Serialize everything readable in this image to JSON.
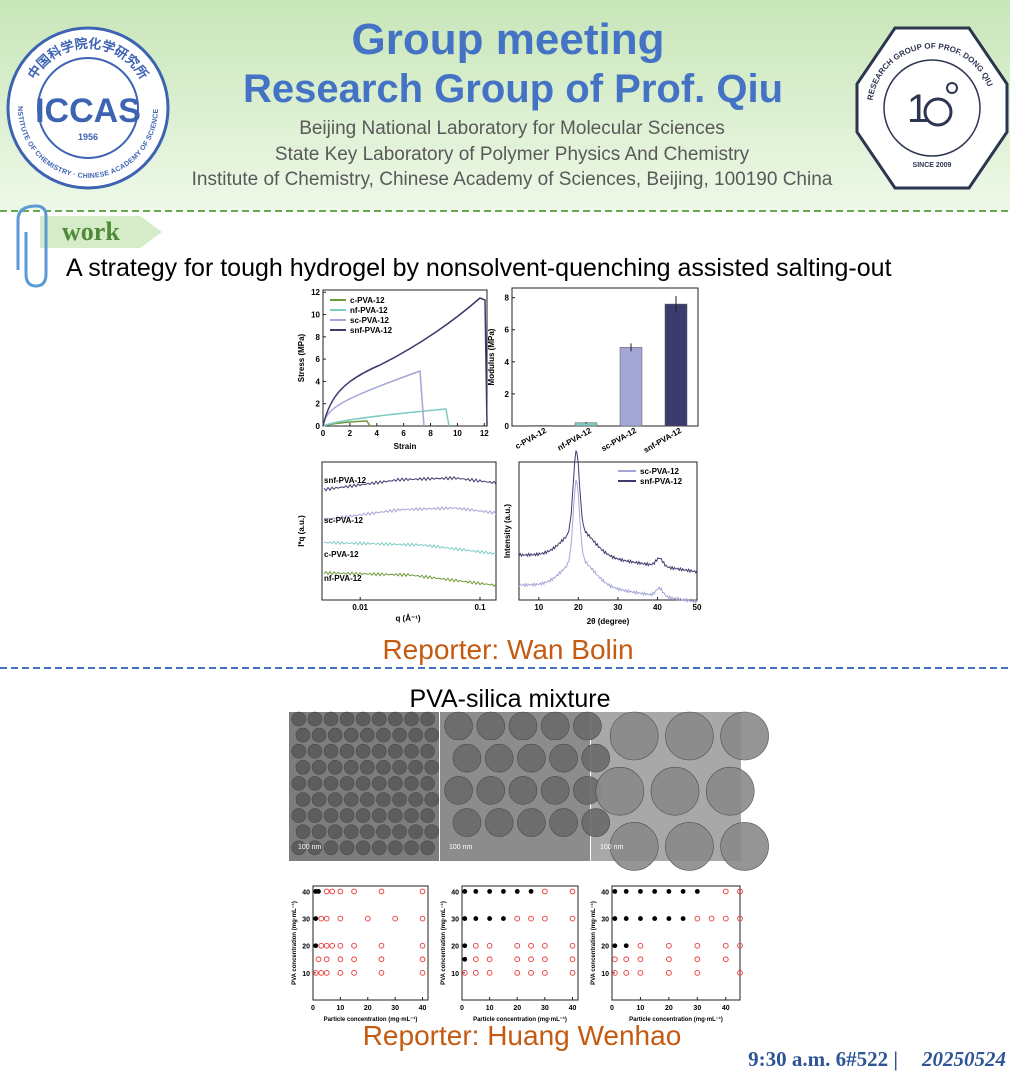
{
  "header": {
    "title": "Group meeting",
    "subtitle": "Research Group of Prof. Qiu",
    "affiliations": [
      "Beijing National Laboratory for Molecular Sciences",
      "State Key Laboratory of Polymer Physics And Chemistry",
      "Institute of Chemistry, Chinese Academy of Sciences, Beijing, 100190 China"
    ],
    "logo_left": {
      "top": "中国科学院化学研究所",
      "abbr": "ICCAS",
      "year": "1956",
      "bottom": "INSTITUTE OF CHEMISTRY · CHINESE ACADEMY OF SCIENCES"
    },
    "logo_right": {
      "ring": "RESEARCH GROUP OF PROF. DONG QIU",
      "since": "SINCE 2009"
    }
  },
  "section_tag": "work",
  "talks": [
    {
      "title": "A strategy for tough  hydrogel by nonsolvent-quenching assisted salting-out",
      "stress_strain": {
        "ylabel": "Stress (MPa)",
        "xlabel": "Strain",
        "ylim": [
          0,
          12.2
        ],
        "yticks": [
          0,
          2,
          4,
          6,
          8,
          10,
          12
        ],
        "xlim": [
          0,
          12.2
        ],
        "xticks": [
          0,
          2,
          4,
          6,
          8,
          10,
          12
        ],
        "series": [
          {
            "name": "c-PVA-12",
            "color": "#6d9c3c"
          },
          {
            "name": "nf-PVA-12",
            "color": "#7fcbc2"
          },
          {
            "name": "sc-PVA-12",
            "color": "#a4a6d6"
          },
          {
            "name": "snf-PVA-12",
            "color": "#3c3b6e"
          }
        ]
      },
      "modulus": {
        "ylabel": "Modulus (MPa)",
        "ylim": [
          0,
          8.6
        ],
        "yticks": [
          0,
          2,
          4,
          6,
          8
        ],
        "categories": [
          "c-PVA-12",
          "nf-PVA-12",
          "sc-PVA-12",
          "snf-PVA-12"
        ],
        "values": [
          0.03,
          0.2,
          4.9,
          7.6
        ],
        "errors": [
          0.02,
          0.05,
          0.25,
          0.5
        ],
        "colors": [
          "#6d9c3c",
          "#7fcbc2",
          "#a4a6d6",
          "#3c3b6e"
        ]
      },
      "saxs": {
        "ylabel": "I*q (a.u.)",
        "xlabel": "q (Å⁻¹)",
        "log_x": true,
        "xlim": [
          0.0048,
          0.136
        ],
        "xticks": [
          0.01,
          0.1
        ],
        "labels": [
          "snf-PVA-12",
          "sc-PVA-12",
          "c-PVA-12",
          "nf-PVA-12"
        ]
      },
      "waxs": {
        "ylabel": "Intensity (a.u.)",
        "xlabel": "2θ (degree)",
        "xlim": [
          5,
          50
        ],
        "xticks": [
          10,
          20,
          30,
          40,
          50
        ],
        "series": [
          {
            "name": "sc-PVA-12",
            "color": "#a4a6d6"
          },
          {
            "name": "snf-PVA-12",
            "color": "#3c3b6e"
          }
        ]
      },
      "reporter": "Reporter: Wan Bolin"
    },
    {
      "title": "PVA-silica mixture",
      "scale_bars": [
        "100 nm",
        "100 nm",
        "100 nm"
      ],
      "phase_diagrams": [
        {
          "ylabel": "PVA concentration (mg·mL⁻¹)",
          "xlabel": "Particle concentration (mg·mL⁻¹)",
          "xlim": [
            0,
            42
          ],
          "ylim": [
            0,
            42
          ],
          "xticks": [
            0,
            10,
            20,
            30,
            40
          ],
          "yticks": [
            10,
            20,
            30,
            40
          ],
          "solid": [
            [
              1,
              40
            ],
            [
              2,
              40
            ],
            [
              1,
              30
            ],
            [
              1,
              20
            ]
          ],
          "open": [
            [
              5,
              40
            ],
            [
              7,
              40
            ],
            [
              10,
              40
            ],
            [
              15,
              40
            ],
            [
              25,
              40
            ],
            [
              40,
              40
            ],
            [
              3,
              30
            ],
            [
              5,
              30
            ],
            [
              10,
              30
            ],
            [
              20,
              30
            ],
            [
              30,
              30
            ],
            [
              40,
              30
            ],
            [
              3,
              20
            ],
            [
              5,
              20
            ],
            [
              7,
              20
            ],
            [
              10,
              20
            ],
            [
              15,
              20
            ],
            [
              25,
              20
            ],
            [
              40,
              20
            ],
            [
              2,
              15
            ],
            [
              5,
              15
            ],
            [
              10,
              15
            ],
            [
              15,
              15
            ],
            [
              25,
              15
            ],
            [
              40,
              15
            ],
            [
              1,
              10
            ],
            [
              3,
              10
            ],
            [
              5,
              10
            ],
            [
              10,
              10
            ],
            [
              15,
              10
            ],
            [
              25,
              10
            ],
            [
              40,
              10
            ]
          ]
        },
        {
          "ylabel": "PVA concentration (mg·mL⁻¹)",
          "xlabel": "Particle concentration (mg·mL⁻¹)",
          "xlim": [
            0,
            42
          ],
          "ylim": [
            0,
            42
          ],
          "xticks": [
            0,
            10,
            20,
            30,
            40
          ],
          "yticks": [
            10,
            20,
            30,
            40
          ],
          "solid": [
            [
              1,
              40
            ],
            [
              5,
              40
            ],
            [
              10,
              40
            ],
            [
              15,
              40
            ],
            [
              20,
              40
            ],
            [
              25,
              40
            ],
            [
              1,
              30
            ],
            [
              5,
              30
            ],
            [
              10,
              30
            ],
            [
              15,
              30
            ],
            [
              1,
              20
            ],
            [
              1,
              15
            ]
          ],
          "open": [
            [
              30,
              40
            ],
            [
              40,
              40
            ],
            [
              20,
              30
            ],
            [
              25,
              30
            ],
            [
              30,
              30
            ],
            [
              40,
              30
            ],
            [
              5,
              20
            ],
            [
              10,
              20
            ],
            [
              20,
              20
            ],
            [
              25,
              20
            ],
            [
              30,
              20
            ],
            [
              40,
              20
            ],
            [
              5,
              15
            ],
            [
              10,
              15
            ],
            [
              20,
              15
            ],
            [
              25,
              15
            ],
            [
              30,
              15
            ],
            [
              40,
              15
            ],
            [
              1,
              10
            ],
            [
              5,
              10
            ],
            [
              10,
              10
            ],
            [
              20,
              10
            ],
            [
              25,
              10
            ],
            [
              30,
              10
            ],
            [
              40,
              10
            ]
          ]
        },
        {
          "ylabel": "PVA concentration (mg·mL⁻¹)",
          "xlabel": "Particle concentration (mg·mL⁻¹)",
          "xlim": [
            0,
            45
          ],
          "ylim": [
            0,
            42
          ],
          "xticks": [
            0,
            10,
            20,
            30,
            40
          ],
          "yticks": [
            10,
            20,
            30,
            40
          ],
          "solid": [
            [
              1,
              40
            ],
            [
              5,
              40
            ],
            [
              10,
              40
            ],
            [
              15,
              40
            ],
            [
              20,
              40
            ],
            [
              25,
              40
            ],
            [
              30,
              40
            ],
            [
              1,
              30
            ],
            [
              5,
              30
            ],
            [
              10,
              30
            ],
            [
              15,
              30
            ],
            [
              20,
              30
            ],
            [
              25,
              30
            ],
            [
              1,
              20
            ],
            [
              5,
              20
            ]
          ],
          "open": [
            [
              40,
              40
            ],
            [
              45,
              40
            ],
            [
              30,
              30
            ],
            [
              35,
              30
            ],
            [
              40,
              30
            ],
            [
              45,
              30
            ],
            [
              10,
              20
            ],
            [
              20,
              20
            ],
            [
              30,
              20
            ],
            [
              40,
              20
            ],
            [
              45,
              20
            ],
            [
              1,
              15
            ],
            [
              5,
              15
            ],
            [
              10,
              15
            ],
            [
              20,
              15
            ],
            [
              30,
              15
            ],
            [
              40,
              15
            ],
            [
              1,
              10
            ],
            [
              5,
              10
            ],
            [
              10,
              10
            ],
            [
              20,
              10
            ],
            [
              30,
              10
            ],
            [
              45,
              10
            ]
          ]
        }
      ],
      "reporter": "Reporter: Huang Wenhao"
    }
  ],
  "footer": {
    "time": "9:30 a.m. 6#522 |",
    "date": "20250524"
  }
}
